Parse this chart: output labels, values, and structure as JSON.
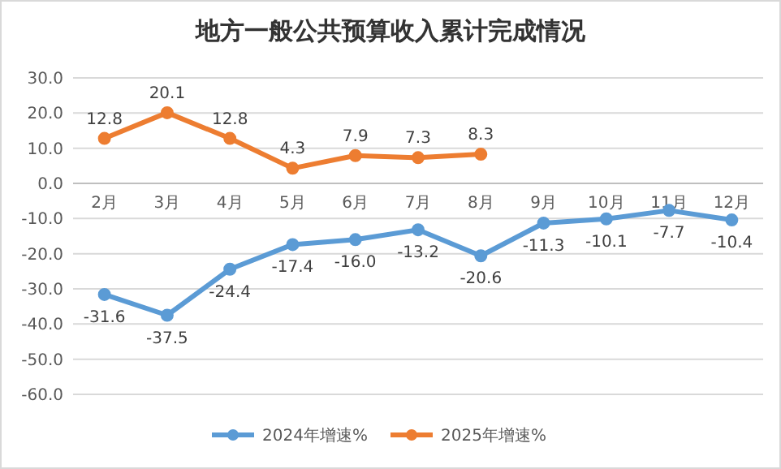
{
  "chart_data": {
    "type": "line",
    "title": "地方一般公共预算收入累计完成情况",
    "categories": [
      "2月",
      "3月",
      "4月",
      "5月",
      "6月",
      "7月",
      "8月",
      "9月",
      "10月",
      "11月",
      "12月"
    ],
    "series": [
      {
        "name": "2024年增速%",
        "color": "#5b9bd5",
        "values": [
          -31.6,
          -37.5,
          -24.4,
          -17.4,
          -16.0,
          -13.2,
          -20.6,
          -11.3,
          -10.1,
          -7.7,
          -10.4
        ],
        "value_labels": [
          "-31.6",
          "-37.5",
          "-24.4",
          "-17.4",
          "-16.0",
          "-13.2",
          "-20.6",
          "-11.3",
          "-10.1",
          "-7.7",
          "-10.4"
        ]
      },
      {
        "name": "2025年增速%",
        "color": "#ed7d31",
        "values": [
          12.8,
          20.1,
          12.8,
          4.3,
          7.9,
          7.3,
          8.3,
          null,
          null,
          null,
          null
        ],
        "value_labels": [
          "12.8",
          "20.1",
          "12.8",
          "4.3",
          "7.9",
          "7.3",
          "8.3",
          null,
          null,
          null,
          null
        ]
      }
    ],
    "ylim": [
      -60,
      30
    ],
    "yticks": [
      {
        "value": 30,
        "label": "30.0"
      },
      {
        "value": 20,
        "label": "20.0"
      },
      {
        "value": 10,
        "label": "10.0"
      },
      {
        "value": 0,
        "label": "0.0"
      },
      {
        "value": -10,
        "label": "-10.0"
      },
      {
        "value": -20,
        "label": "-20.0"
      },
      {
        "value": -30,
        "label": "-30.0"
      },
      {
        "value": -40,
        "label": "-40.0"
      },
      {
        "value": -50,
        "label": "-50.0"
      },
      {
        "value": -60,
        "label": "-60.0"
      }
    ],
    "grid": "y",
    "legend": "bottom",
    "marker": "circle"
  }
}
